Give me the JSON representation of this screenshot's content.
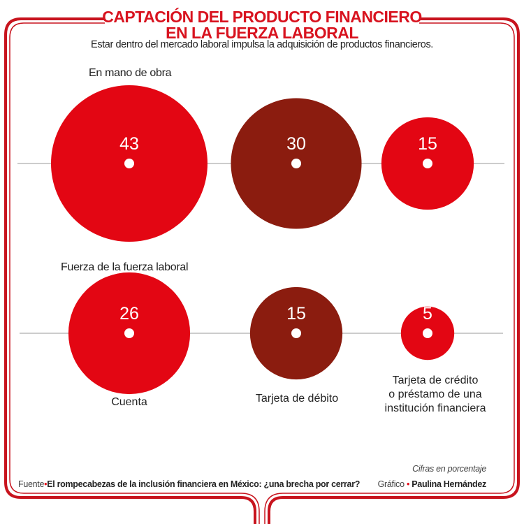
{
  "title_line1": "CAPTACIÓN DEL PRODUCTO FINANCIERO",
  "title_line2": "EN LA FUERZA LABORAL",
  "subtitle": "Estar dentro del mercado laboral impulsa la adquisición de productos financieros.",
  "chart_data": {
    "type": "bubble",
    "categories": [
      "Cuenta",
      "Tarjeta de débito",
      "Tarjeta de crédito o préstamo de una institución financiera"
    ],
    "category_lines": [
      [
        "Cuenta"
      ],
      [
        "Tarjeta de débito"
      ],
      [
        "Tarjeta de crédito",
        "o préstamo de una",
        "institución financiera"
      ]
    ],
    "series": [
      {
        "name": "En mano de obra",
        "values": [
          43,
          30,
          15
        ]
      },
      {
        "name": "Fuerza de la fuerza laboral",
        "values": [
          26,
          15,
          5
        ]
      }
    ],
    "unit_note": "Cifras en porcentaje",
    "colors": [
      "#e30613",
      "#8b1c0f",
      "#e30613"
    ]
  },
  "footer": {
    "source_label": "Fuente",
    "source_text": "El rompecabezas de la inclusión financiera en México: ¿una brecha por cerrar?",
    "note": "Cifras en porcentaje",
    "credit_label": "Gráfico",
    "credit_name": "Paulina Hernández"
  }
}
